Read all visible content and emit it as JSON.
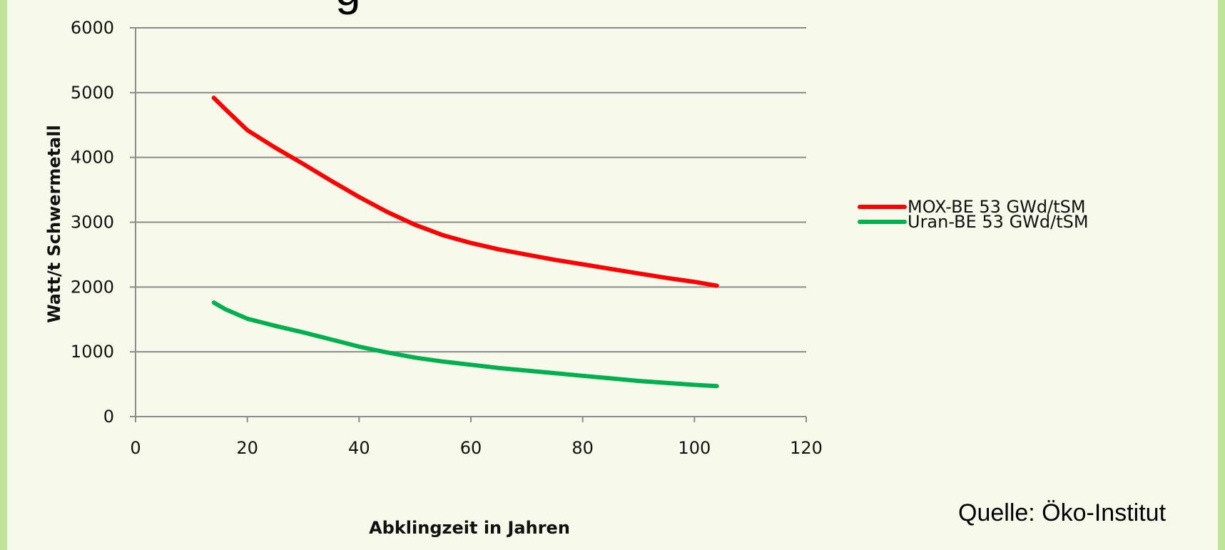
{
  "title_fragment": "g",
  "source": "Quelle: Öko-Institut",
  "chart_data": {
    "type": "line",
    "xlabel": "Abklingzeit in Jahren",
    "ylabel": "Watt/t Schwermetall",
    "xlim": [
      0,
      120
    ],
    "ylim": [
      0,
      6000
    ],
    "xticks": [
      "0",
      "20",
      "40",
      "60",
      "80",
      "100",
      "120"
    ],
    "yticks": [
      "0",
      "1000",
      "2000",
      "3000",
      "4000",
      "5000",
      "6000"
    ],
    "grid": "horizontal",
    "legend_position": "right",
    "series": [
      {
        "name": "MOX-BE 53 GWd/tSM",
        "color": "#ff0000",
        "x": [
          14,
          16,
          20,
          25,
          30,
          35,
          40,
          45,
          50,
          55,
          60,
          65,
          70,
          75,
          80,
          85,
          90,
          95,
          100,
          104
        ],
        "y": [
          4920,
          4750,
          4420,
          4150,
          3900,
          3640,
          3390,
          3160,
          2960,
          2800,
          2680,
          2580,
          2500,
          2420,
          2350,
          2280,
          2210,
          2140,
          2080,
          2020
        ]
      },
      {
        "name": "Uran-BE 53 GWd/tSM",
        "color": "#00b050",
        "x": [
          14,
          16,
          20,
          25,
          30,
          35,
          40,
          45,
          50,
          55,
          60,
          65,
          70,
          75,
          80,
          85,
          90,
          95,
          100,
          104
        ],
        "y": [
          1760,
          1660,
          1510,
          1400,
          1300,
          1190,
          1080,
          990,
          910,
          850,
          800,
          750,
          710,
          670,
          630,
          590,
          550,
          520,
          490,
          470
        ]
      }
    ]
  }
}
